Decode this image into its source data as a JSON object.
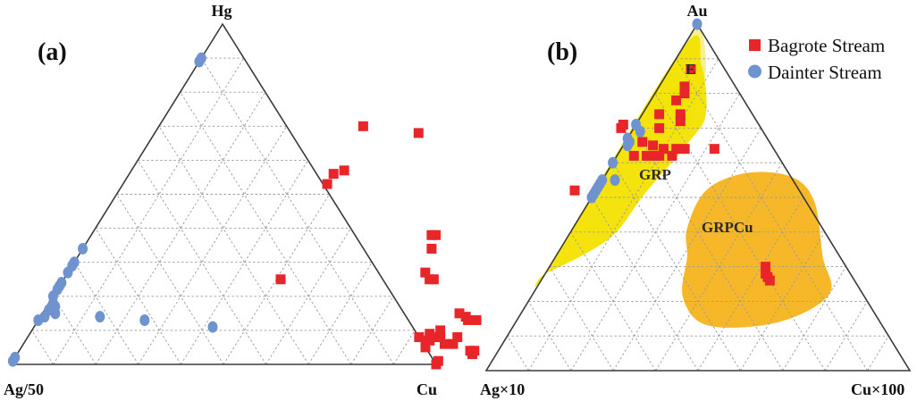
{
  "chart_data": [
    {
      "type": "scatter",
      "subtype": "ternary",
      "panel_label": "(a)",
      "axes": {
        "top": "Hg",
        "left": "Ag/50",
        "right": "Cu"
      },
      "grid": true,
      "series": [
        {
          "name": "Bagrote Stream",
          "marker": "square",
          "color": "#e8262a",
          "points": [
            {
              "Hg": 0.7,
              "Cu": 0.48,
              "Ag/50": -0.18
            },
            {
              "Hg": 0.68,
              "Cu": 0.62,
              "Ag/50": -0.3
            },
            {
              "Hg": 0.56,
              "Cu": 0.48,
              "Ag/50": -0.04
            },
            {
              "Hg": 0.57,
              "Cu": 0.5,
              "Ag/50": -0.07
            },
            {
              "Hg": 0.53,
              "Cu": 0.48,
              "Ag/50": -0.01
            },
            {
              "Hg": 0.38,
              "Cu": 0.8,
              "Ag/50": -0.18
            },
            {
              "Hg": 0.38,
              "Cu": 0.81,
              "Ag/50": -0.19
            },
            {
              "Hg": 0.34,
              "Cu": 0.82,
              "Ag/50": -0.16
            },
            {
              "Hg": 0.27,
              "Cu": 0.84,
              "Ag/50": -0.11
            },
            {
              "Hg": 0.25,
              "Cu": 0.87,
              "Ag/50": -0.12
            },
            {
              "Hg": 0.25,
              "Cu": 0.86,
              "Ag/50": -0.11
            },
            {
              "Hg": 0.25,
              "Cu": 0.51,
              "Ag/50": 0.24
            },
            {
              "Hg": 0.15,
              "Cu": 0.98,
              "Ag/50": -0.13
            },
            {
              "Hg": 0.14,
              "Cu": 1.0,
              "Ag/50": -0.14
            },
            {
              "Hg": 0.13,
              "Cu": 1.01,
              "Ag/50": -0.14
            },
            {
              "Hg": 0.13,
              "Cu": 1.03,
              "Ag/50": -0.16
            },
            {
              "Hg": 0.1,
              "Cu": 0.96,
              "Ag/50": -0.06
            },
            {
              "Hg": 0.09,
              "Cu": 0.94,
              "Ag/50": -0.03
            },
            {
              "Hg": 0.08,
              "Cu": 0.92,
              "Ag/50": 0.0
            },
            {
              "Hg": 0.08,
              "Cu": 0.95,
              "Ag/50": -0.03
            },
            {
              "Hg": 0.08,
              "Cu": 0.97,
              "Ag/50": -0.05
            },
            {
              "Hg": 0.08,
              "Cu": 1.01,
              "Ag/50": -0.09
            },
            {
              "Hg": 0.07,
              "Cu": 0.94,
              "Ag/50": -0.01
            },
            {
              "Hg": 0.07,
              "Cu": 0.95,
              "Ag/50": -0.02
            },
            {
              "Hg": 0.06,
              "Cu": 0.99,
              "Ag/50": -0.05
            },
            {
              "Hg": 0.06,
              "Cu": 1.01,
              "Ag/50": -0.07
            },
            {
              "Hg": 0.05,
              "Cu": 0.95,
              "Ag/50": 0.0
            },
            {
              "Hg": 0.04,
              "Cu": 1.06,
              "Ag/50": -0.1
            },
            {
              "Hg": 0.04,
              "Cu": 1.07,
              "Ag/50": -0.11
            },
            {
              "Hg": 0.03,
              "Cu": 1.07,
              "Ag/50": -0.1
            },
            {
              "Hg": 0.01,
              "Cu": 1.0,
              "Ag/50": -0.01
            },
            {
              "Hg": 0.0,
              "Cu": 1.0,
              "Ag/50": 0.0
            }
          ]
        },
        {
          "name": "Dainter Stream",
          "marker": "circle",
          "color": "#6f93cf",
          "points": [
            {
              "Hg": 0.9,
              "Cu": 0.0,
              "Ag/50": 0.1
            },
            {
              "Hg": 0.89,
              "Cu": 0.0,
              "Ag/50": 0.11
            },
            {
              "Hg": 0.34,
              "Cu": 0.0,
              "Ag/50": 0.66
            },
            {
              "Hg": 0.3,
              "Cu": 0.0,
              "Ag/50": 0.7
            },
            {
              "Hg": 0.29,
              "Cu": 0.0,
              "Ag/50": 0.71
            },
            {
              "Hg": 0.27,
              "Cu": 0.0,
              "Ag/50": 0.73
            },
            {
              "Hg": 0.24,
              "Cu": 0.0,
              "Ag/50": 0.76
            },
            {
              "Hg": 0.23,
              "Cu": 0.0,
              "Ag/50": 0.77
            },
            {
              "Hg": 0.22,
              "Cu": 0.0,
              "Ag/50": 0.78
            },
            {
              "Hg": 0.2,
              "Cu": 0.0,
              "Ag/50": 0.8
            },
            {
              "Hg": 0.18,
              "Cu": 0.01,
              "Ag/50": 0.81
            },
            {
              "Hg": 0.17,
              "Cu": 0.02,
              "Ag/50": 0.81
            },
            {
              "Hg": 0.16,
              "Cu": 0.01,
              "Ag/50": 0.83
            },
            {
              "Hg": 0.15,
              "Cu": 0.03,
              "Ag/50": 0.82
            },
            {
              "Hg": 0.14,
              "Cu": 0.01,
              "Ag/50": 0.85
            },
            {
              "Hg": 0.13,
              "Cu": 0.0,
              "Ag/50": 0.87
            },
            {
              "Hg": 0.14,
              "Cu": 0.14,
              "Ag/50": 0.72
            },
            {
              "Hg": 0.13,
              "Cu": 0.25,
              "Ag/50": 0.62
            },
            {
              "Hg": 0.11,
              "Cu": 0.42,
              "Ag/50": 0.47
            },
            {
              "Hg": 0.02,
              "Cu": 0.0,
              "Ag/50": 0.98
            },
            {
              "Hg": 0.01,
              "Cu": 0.0,
              "Ag/50": 0.99
            }
          ]
        }
      ]
    },
    {
      "type": "scatter",
      "subtype": "ternary",
      "panel_label": "(b)",
      "axes": {
        "top": "Au",
        "left": "Ag×10",
        "right": "Cu×100"
      },
      "grid": true,
      "legend": {
        "position": "top-right",
        "entries": [
          "Bagrote Stream",
          "Dainter Stream"
        ]
      },
      "fields": [
        {
          "label": "E",
          "color": "#f7ef8a",
          "vertices": [
            {
              "Au": 0.98,
              "Cu×100": 0.02,
              "Ag×10": 0.0
            },
            {
              "Au": 0.95,
              "Cu×100": 0.0,
              "Ag×10": 0.05
            },
            {
              "Au": 0.67,
              "Cu×100": 0.0,
              "Ag×10": 0.33
            },
            {
              "Au": 0.64,
              "Cu×100": 0.04,
              "Ag×10": 0.32
            },
            {
              "Au": 0.68,
              "Cu×100": 0.12,
              "Ag×10": 0.2
            },
            {
              "Au": 0.75,
              "Cu×100": 0.12,
              "Ag×10": 0.13
            },
            {
              "Au": 0.86,
              "Cu×100": 0.09,
              "Ag×10": 0.05
            }
          ]
        },
        {
          "label": "GRP",
          "color": "#f3e200",
          "vertices": [
            {
              "Au": 0.93,
              "Cu×100": 0.0,
              "Ag×10": 0.07
            },
            {
              "Au": 0.88,
              "Cu×100": 0.07,
              "Ag×10": 0.05
            },
            {
              "Au": 0.74,
              "Cu×100": 0.15,
              "Ag×10": 0.11
            },
            {
              "Au": 0.66,
              "Cu×100": 0.15,
              "Ag×10": 0.19
            },
            {
              "Au": 0.51,
              "Cu×100": 0.12,
              "Ag×10": 0.37
            },
            {
              "Au": 0.38,
              "Cu×100": 0.1,
              "Ag×10": 0.52
            },
            {
              "Au": 0.28,
              "Cu×100": 0.0,
              "Ag×10": 0.72
            },
            {
              "Au": 0.3,
              "Cu×100": 0.0,
              "Ag×10": 0.7
            }
          ]
        },
        {
          "label": "GRPCu",
          "color": "#f5b41c",
          "vertices": [
            {
              "Au": 0.57,
              "Cu×100": 0.33,
              "Ag×10": 0.1
            },
            {
              "Au": 0.56,
              "Cu×100": 0.44,
              "Ag×10": 0.0
            },
            {
              "Au": 0.49,
              "Cu×100": 0.53,
              "Ag×10": -0.02
            },
            {
              "Au": 0.33,
              "Cu×100": 0.63,
              "Ag×10": 0.04
            },
            {
              "Au": 0.22,
              "Cu×100": 0.7,
              "Ag×10": 0.08
            },
            {
              "Au": 0.14,
              "Cu×100": 0.62,
              "Ag×10": 0.24
            },
            {
              "Au": 0.13,
              "Cu×100": 0.46,
              "Ag×10": 0.41
            },
            {
              "Au": 0.21,
              "Cu×100": 0.36,
              "Ag×10": 0.43
            },
            {
              "Au": 0.33,
              "Cu×100": 0.31,
              "Ag×10": 0.36
            },
            {
              "Au": 0.41,
              "Cu×100": 0.27,
              "Ag×10": 0.32
            },
            {
              "Au": 0.52,
              "Cu×100": 0.26,
              "Ag×10": 0.22
            }
          ]
        }
      ],
      "series": [
        {
          "name": "Bagrote Stream",
          "marker": "square",
          "color": "#e8262a",
          "points": [
            {
              "Au": 0.87,
              "Cu×100": 0.05,
              "Ag×10": 0.08
            },
            {
              "Au": 0.82,
              "Cu×100": 0.06,
              "Ag×10": 0.12
            },
            {
              "Au": 0.8,
              "Cu×100": 0.07,
              "Ag×10": 0.13
            },
            {
              "Au": 0.78,
              "Cu×100": 0.06,
              "Ag×10": 0.16
            },
            {
              "Au": 0.74,
              "Cu×100": 0.09,
              "Ag×10": 0.17
            },
            {
              "Au": 0.72,
              "Cu×100": 0.1,
              "Ag×10": 0.18
            },
            {
              "Au": 0.74,
              "Cu×100": 0.04,
              "Ag×10": 0.22
            },
            {
              "Au": 0.71,
              "Cu×100": -0.03,
              "Ag×10": 0.32
            },
            {
              "Au": 0.7,
              "Cu×100": -0.03,
              "Ag×10": 0.33
            },
            {
              "Au": 0.7,
              "Cu×100": 0.06,
              "Ag×10": 0.24
            },
            {
              "Au": 0.66,
              "Cu×100": 0.04,
              "Ag×10": 0.3
            },
            {
              "Au": 0.65,
              "Cu×100": 0.07,
              "Ag×10": 0.28
            },
            {
              "Au": 0.64,
              "Cu×100": 0.1,
              "Ag×10": 0.26
            },
            {
              "Au": 0.64,
              "Cu×100": 0.13,
              "Ag×10": 0.23
            },
            {
              "Au": 0.64,
              "Cu×100": 0.15,
              "Ag×10": 0.21
            },
            {
              "Au": 0.64,
              "Cu×100": 0.22,
              "Ag×10": 0.14
            },
            {
              "Au": 0.62,
              "Cu×100": 0.04,
              "Ag×10": 0.34
            },
            {
              "Au": 0.62,
              "Cu×100": 0.09,
              "Ag×10": 0.29
            },
            {
              "Au": 0.62,
              "Cu×100": 0.1,
              "Ag×10": 0.28
            },
            {
              "Au": 0.62,
              "Cu×100": 0.13,
              "Ag×10": 0.25
            },
            {
              "Au": 0.62,
              "Cu×100": 0.07,
              "Ag×10": 0.31
            },
            {
              "Au": 0.52,
              "Cu×100": -0.05,
              "Ag×10": 0.53
            },
            {
              "Au": 0.3,
              "Cu×100": 0.51,
              "Ag×10": 0.19
            },
            {
              "Au": 0.28,
              "Cu×100": 0.52,
              "Ag×10": 0.2
            },
            {
              "Au": 0.27,
              "Cu×100": 0.53,
              "Ag×10": 0.2
            },
            {
              "Au": 0.26,
              "Cu×100": 0.54,
              "Ag×10": 0.2
            }
          ]
        },
        {
          "name": "Dainter Stream",
          "marker": "circle",
          "color": "#6f93cf",
          "points": [
            {
              "Au": 1.0,
              "Cu×100": 0.0,
              "Ag×10": 0.0
            },
            {
              "Au": 0.71,
              "Cu×100": 0.0,
              "Ag×10": 0.29
            },
            {
              "Au": 0.69,
              "Cu×100": 0.02,
              "Ag×10": 0.29
            },
            {
              "Au": 0.67,
              "Cu×100": 0.0,
              "Ag×10": 0.33
            },
            {
              "Au": 0.66,
              "Cu×100": 0.01,
              "Ag×10": 0.33
            },
            {
              "Au": 0.65,
              "Cu×100": 0.01,
              "Ag×10": 0.34
            },
            {
              "Au": 0.6,
              "Cu×100": 0.0,
              "Ag×10": 0.4
            },
            {
              "Au": 0.55,
              "Cu×100": 0.0,
              "Ag×10": 0.45
            },
            {
              "Au": 0.54,
              "Cu×100": 0.0,
              "Ag×10": 0.46
            },
            {
              "Au": 0.53,
              "Cu×100": 0.0,
              "Ag×10": 0.47
            },
            {
              "Au": 0.52,
              "Cu×100": 0.0,
              "Ag×10": 0.48
            },
            {
              "Au": 0.51,
              "Cu×100": 0.0,
              "Ag×10": 0.49
            },
            {
              "Au": 0.5,
              "Cu×100": 0.0,
              "Ag×10": 0.5
            },
            {
              "Au": 0.55,
              "Cu×100": 0.03,
              "Ag×10": 0.42
            }
          ]
        }
      ],
      "region_labels": [
        "E",
        "GRP",
        "GRPCu"
      ]
    }
  ]
}
